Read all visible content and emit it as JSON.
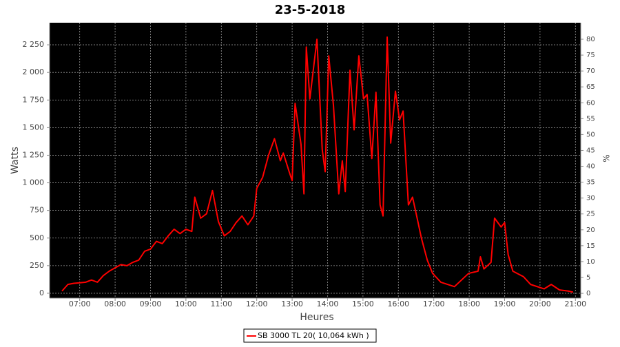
{
  "chart_data": {
    "type": "line",
    "title": "23-5-2018",
    "x_label": "Heures",
    "y_label": "Watts",
    "y2_label": "%",
    "x": [
      "06:30",
      "06:40",
      "06:50",
      "07:00",
      "07:10",
      "07:20",
      "07:30",
      "07:40",
      "07:50",
      "08:00",
      "08:10",
      "08:20",
      "08:30",
      "08:40",
      "08:50",
      "09:00",
      "09:10",
      "09:20",
      "09:30",
      "09:40",
      "09:50",
      "10:00",
      "10:10",
      "10:15",
      "10:25",
      "10:35",
      "10:45",
      "10:55",
      "11:05",
      "11:15",
      "11:25",
      "11:35",
      "11:45",
      "11:55",
      "12:00",
      "12:10",
      "12:20",
      "12:30",
      "12:40",
      "12:45",
      "12:55",
      "13:00",
      "13:05",
      "13:15",
      "13:20",
      "13:24",
      "13:30",
      "13:42",
      "13:51",
      "13:56",
      "14:02",
      "14:10",
      "14:19",
      "14:25",
      "14:30",
      "14:38",
      "14:45",
      "14:53",
      "15:01",
      "15:07",
      "15:15",
      "15:22",
      "15:29",
      "15:34",
      "15:41",
      "15:47",
      "15:55",
      "16:02",
      "16:08",
      "16:17",
      "16:24",
      "16:31",
      "16:39",
      "16:49",
      "16:58",
      "17:12",
      "17:35",
      "17:59",
      "18:15",
      "18:19",
      "18:25",
      "18:37",
      "18:43",
      "18:54",
      "19:00",
      "19:06",
      "19:14",
      "19:32",
      "19:44",
      "20:07",
      "20:19",
      "20:33",
      "20:48",
      "20:56"
    ],
    "series": [
      {
        "name": "SB 3000 TL 20( 10,064 kWh )",
        "color": "#ff0000",
        "values": [
          20,
          80,
          90,
          95,
          100,
          120,
          100,
          160,
          200,
          230,
          260,
          250,
          280,
          300,
          380,
          400,
          470,
          450,
          520,
          580,
          540,
          580,
          560,
          870,
          680,
          720,
          930,
          650,
          520,
          560,
          640,
          700,
          620,
          700,
          950,
          1050,
          1250,
          1400,
          1200,
          1270,
          1100,
          1020,
          1720,
          1350,
          900,
          2230,
          1760,
          2300,
          1300,
          1100,
          2150,
          1700,
          900,
          1200,
          920,
          2020,
          1480,
          2150,
          1760,
          1800,
          1220,
          1820,
          800,
          700,
          2320,
          1360,
          1830,
          1570,
          1650,
          800,
          870,
          700,
          500,
          300,
          180,
          100,
          60,
          180,
          200,
          330,
          220,
          280,
          680,
          600,
          640,
          350,
          200,
          150,
          80,
          40,
          80,
          30,
          20,
          10
        ]
      }
    ],
    "xlim": [
      "06:09",
      "21:09"
    ],
    "xticks": [
      "07:00",
      "08:00",
      "09:00",
      "10:00",
      "11:00",
      "12:00",
      "13:00",
      "14:00",
      "15:00",
      "16:00",
      "17:00",
      "18:00",
      "19:00",
      "20:00",
      "21:00"
    ],
    "ylim": [
      -44,
      2450
    ],
    "yticks": [
      0,
      250,
      500,
      750,
      {
        "value": 1000,
        "label": "1 000"
      },
      {
        "value": 1250,
        "label": "1 250"
      },
      {
        "value": 1500,
        "label": "1 500"
      },
      {
        "value": 1750,
        "label": "1 750"
      },
      {
        "value": 2000,
        "label": "2 000"
      },
      {
        "value": 2250,
        "label": "2 250"
      }
    ],
    "y2lim": [
      -1.5,
      85.2
    ],
    "y2ticks": [
      0,
      5,
      10,
      15,
      20,
      25,
      30,
      35,
      40,
      45,
      50,
      55,
      60,
      65,
      70,
      75,
      80
    ],
    "grid": true
  }
}
